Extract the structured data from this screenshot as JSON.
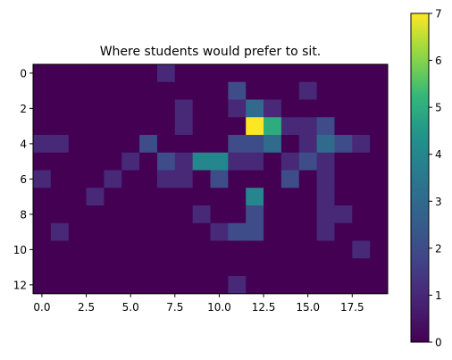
{
  "chart_data": {
    "type": "heatmap",
    "title": "Where students would prefer to sit.",
    "xlabel": "",
    "ylabel": "",
    "rows": 13,
    "cols": 20,
    "xlim": [
      -0.5,
      19.5
    ],
    "ylim": [
      12.5,
      -0.5
    ],
    "x_ticks": [
      0,
      2.5,
      5,
      7.5,
      10,
      12.5,
      15,
      17.5
    ],
    "x_tick_labels": [
      "0.0",
      "2.5",
      "5.0",
      "7.5",
      "10.0",
      "12.5",
      "15.0",
      "17.5"
    ],
    "y_ticks": [
      0,
      2,
      4,
      6,
      8,
      10,
      12
    ],
    "y_tick_labels": [
      "0",
      "2",
      "4",
      "6",
      "8",
      "10",
      "12"
    ],
    "colorbar": {
      "min": 0,
      "max": 7,
      "ticks": [
        0,
        1,
        2,
        3,
        4,
        5,
        6,
        7
      ],
      "tick_labels": [
        "0",
        "1",
        "2",
        "3",
        "4",
        "5",
        "6",
        "7"
      ],
      "colormap": "viridis"
    },
    "grid": false,
    "values": [
      [
        0,
        0,
        0,
        0,
        0,
        0,
        0,
        1,
        0,
        0,
        0,
        0,
        0,
        0,
        0,
        0,
        0,
        0,
        0,
        0
      ],
      [
        0,
        0,
        0,
        0,
        0,
        0,
        0,
        0,
        0,
        0,
        0,
        2,
        0,
        0,
        0,
        1,
        0,
        0,
        0,
        0
      ],
      [
        0,
        0,
        0,
        0,
        0,
        0,
        0,
        0,
        1,
        0,
        0,
        1,
        3,
        1,
        0,
        0,
        0,
        0,
        0,
        0
      ],
      [
        0,
        0,
        0,
        0,
        0,
        0,
        0,
        0,
        1,
        0,
        0,
        0,
        7,
        5,
        1,
        1,
        2,
        0,
        0,
        0
      ],
      [
        1,
        1,
        0,
        0,
        0,
        0,
        2,
        0,
        0,
        0,
        0,
        2,
        2,
        3,
        0,
        1,
        3,
        2,
        1,
        0
      ],
      [
        0,
        0,
        0,
        0,
        0,
        1,
        0,
        2,
        1,
        4,
        4,
        1,
        1,
        0,
        1,
        2,
        1,
        0,
        0,
        0
      ],
      [
        1,
        0,
        0,
        0,
        1,
        0,
        0,
        1,
        1,
        0,
        2,
        0,
        0,
        0,
        2,
        0,
        1,
        0,
        0,
        0
      ],
      [
        0,
        0,
        0,
        1,
        0,
        0,
        0,
        0,
        0,
        0,
        0,
        0,
        4,
        0,
        0,
        0,
        1,
        0,
        0,
        0
      ],
      [
        0,
        0,
        0,
        0,
        0,
        0,
        0,
        0,
        0,
        1,
        0,
        0,
        2,
        0,
        0,
        0,
        1,
        1,
        0,
        0
      ],
      [
        0,
        1,
        0,
        0,
        0,
        0,
        0,
        0,
        0,
        0,
        1,
        2,
        2,
        0,
        0,
        0,
        1,
        0,
        0,
        0
      ],
      [
        0,
        0,
        0,
        0,
        0,
        0,
        0,
        0,
        0,
        0,
        0,
        0,
        0,
        0,
        0,
        0,
        0,
        0,
        1,
        0
      ],
      [
        0,
        0,
        0,
        0,
        0,
        0,
        0,
        0,
        0,
        0,
        0,
        0,
        0,
        0,
        0,
        0,
        0,
        0,
        0,
        0
      ],
      [
        0,
        0,
        0,
        0,
        0,
        0,
        0,
        0,
        0,
        0,
        0,
        1,
        0,
        0,
        0,
        0,
        0,
        0,
        0,
        0
      ]
    ]
  }
}
